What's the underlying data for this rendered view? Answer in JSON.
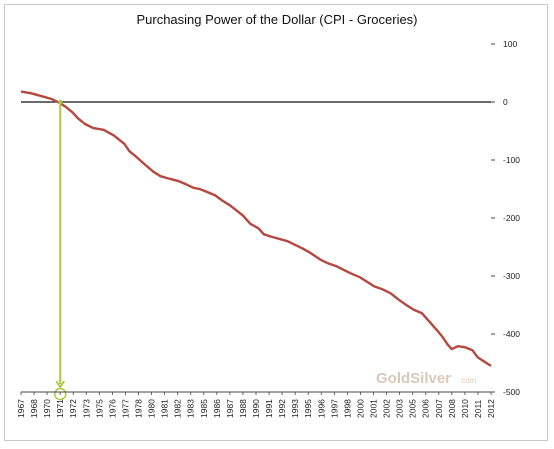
{
  "chart_data": {
    "type": "line",
    "title": "Purchasing Power of the Dollar (CPI - Groceries)",
    "xlabel": "",
    "ylabel": "",
    "ylim": [
      -500,
      100
    ],
    "yticks": [
      100,
      0,
      -100,
      -200,
      -300,
      -400,
      -500
    ],
    "x_tick_labels": [
      "1967",
      "1968",
      "1970",
      "1971",
      "1972",
      "1973",
      "1975",
      "1976",
      "1977",
      "1978",
      "1980",
      "1981",
      "1982",
      "1983",
      "1985",
      "1986",
      "1987",
      "1988",
      "1990",
      "1991",
      "1992",
      "1993",
      "1995",
      "1996",
      "1997",
      "1998",
      "2000",
      "2001",
      "2002",
      "2003",
      "2005",
      "2006",
      "2007",
      "2008",
      "2010",
      "2011",
      "2012"
    ],
    "grid": false,
    "legend": "none",
    "series": [
      {
        "color": "#b5483f",
        "x": [
          1967.0,
          1968.0,
          1969.0,
          1970.0,
          1970.3,
          1970.8,
          1971.3,
          1972.0,
          1972.5,
          1973.2,
          1974.0,
          1975.0,
          1976.0,
          1977.0,
          1977.5,
          1978.0,
          1979.0,
          1979.8,
          1980.5,
          1981.5,
          1982.2,
          1983.0,
          1983.7,
          1984.3,
          1985.0,
          1985.8,
          1986.5,
          1987.2,
          1987.8,
          1988.5,
          1989.2,
          1990.0,
          1990.5,
          1991.2,
          1992.0,
          1992.8,
          1993.5,
          1994.2,
          1995.0,
          1996.0,
          1996.7,
          1997.5,
          1998.3,
          1999.0,
          1999.8,
          2000.5,
          2001.2,
          2002.0,
          2002.8,
          2003.5,
          2004.3,
          2005.0,
          2005.8,
          2006.5,
          2007.2,
          2007.8,
          2008.3,
          2008.7,
          2009.3,
          2010.0,
          2010.7,
          2011.2,
          2011.8,
          2012.5
        ],
        "values": [
          18,
          15,
          10,
          5,
          2,
          -2,
          -8,
          -18,
          -28,
          -38,
          -45,
          -48,
          -58,
          -72,
          -85,
          -92,
          -108,
          -120,
          -128,
          -133,
          -136,
          -142,
          -148,
          -150,
          -155,
          -161,
          -170,
          -178,
          -186,
          -196,
          -210,
          -218,
          -228,
          -232,
          -236,
          -240,
          -246,
          -252,
          -260,
          -272,
          -278,
          -283,
          -290,
          -296,
          -302,
          -310,
          -318,
          -323,
          -330,
          -340,
          -350,
          -358,
          -364,
          -378,
          -392,
          -405,
          -418,
          -426,
          -421,
          -423,
          -428,
          -440,
          -447,
          -455
        ]
      }
    ],
    "reference_line": {
      "y": 0,
      "color": "#111111"
    },
    "annotation": {
      "x": 1970.8,
      "color": "#a8c840",
      "marker": "circle"
    },
    "watermark": {
      "text_main": "GoldSilver",
      "text_sub": ".com"
    }
  }
}
